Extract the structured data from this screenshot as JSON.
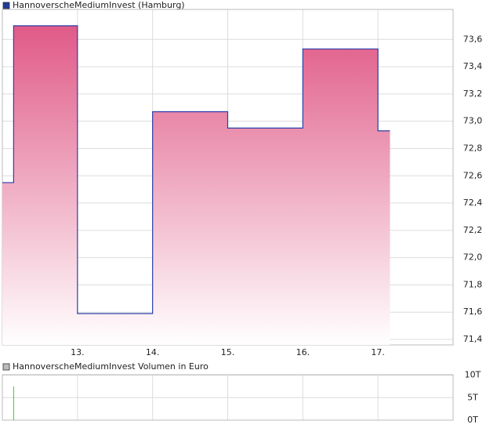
{
  "chart_data": [
    {
      "type": "line",
      "title": "HannoverscheMediumInvest (Hamburg)",
      "legend_color": "#1f3c99",
      "step": "after",
      "color": "#2b3fa8",
      "fill_top": "#e05a88",
      "x": [
        12.0,
        12.15,
        13.0,
        14.0,
        15.0,
        16.0,
        17.0,
        17.16
      ],
      "values": [
        72.55,
        73.7,
        71.59,
        73.07,
        72.95,
        73.53,
        72.93,
        72.93
      ],
      "xlim": [
        12.0,
        18.0
      ],
      "xticks": [
        {
          "value": 13,
          "label": "13."
        },
        {
          "value": 14,
          "label": "14."
        },
        {
          "value": 15,
          "label": "15."
        },
        {
          "value": 16,
          "label": "16."
        },
        {
          "value": 17,
          "label": "17."
        }
      ],
      "ylim": [
        71.36,
        73.82
      ],
      "yticks": [
        {
          "value": 71.4,
          "label": "71,4"
        },
        {
          "value": 71.6,
          "label": "71,6"
        },
        {
          "value": 71.8,
          "label": "71,8"
        },
        {
          "value": 72.0,
          "label": "72,0"
        },
        {
          "value": 72.2,
          "label": "72,2"
        },
        {
          "value": 72.4,
          "label": "72,4"
        },
        {
          "value": 72.6,
          "label": "72,6"
        },
        {
          "value": 72.8,
          "label": "72,8"
        },
        {
          "value": 73.0,
          "label": "73,0"
        },
        {
          "value": 73.2,
          "label": "73,2"
        },
        {
          "value": 73.4,
          "label": "73,4"
        },
        {
          "value": 73.6,
          "label": "73,6"
        }
      ],
      "grid": true
    },
    {
      "type": "bar",
      "title": "HannoverscheMediumInvest Volumen in Euro",
      "legend_color": "#bbbbbb",
      "color": "#33cc33",
      "x": [
        12.15
      ],
      "values": [
        7.5
      ],
      "xlim": [
        12.0,
        18.0
      ],
      "xticks": [
        13,
        14,
        15,
        16,
        17
      ],
      "ylim": [
        0,
        10.1
      ],
      "yticks": [
        {
          "value": 0,
          "label": "0T"
        },
        {
          "value": 5,
          "label": "5T"
        },
        {
          "value": 10,
          "label": "10T"
        }
      ],
      "grid": true
    }
  ]
}
